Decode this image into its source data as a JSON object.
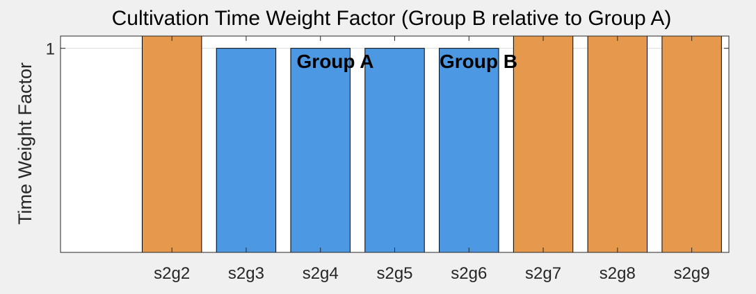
{
  "chart_data": {
    "type": "bar",
    "title": "Cultivation Time Weight Factor (Group B relative to Group A)",
    "xlabel": "",
    "ylabel": "Time Weight Factor",
    "categories": [
      "",
      "s2g2",
      "s2g3",
      "s2g4",
      "s2g5",
      "s2g6",
      "s2g7",
      "s2g8",
      "s2g9"
    ],
    "values": [
      null,
      1.06,
      1.0,
      1.0,
      1.0,
      1.0,
      1.06,
      1.06,
      1.06
    ],
    "groups": [
      "",
      "Group B",
      "Group A",
      "Group A",
      "Group A",
      "Group A",
      "Group B",
      "Group B",
      "Group B"
    ],
    "ylim": [
      0,
      1.06
    ],
    "yticks": [
      1
    ],
    "ytick_labels": [
      "1"
    ],
    "grid": "horizontal",
    "legend": [
      {
        "label": "Group A",
        "color": "#4d98e2"
      },
      {
        "label": "Group B",
        "color": "#e6994d"
      }
    ],
    "colors": {
      "Group A": "#4d98e2",
      "Group B": "#e6994d"
    }
  }
}
